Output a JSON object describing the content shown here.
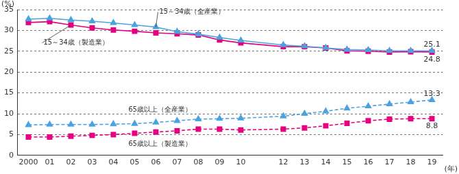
{
  "chart_data": {
    "type": "line",
    "y_label": "(%)",
    "x_label": "(年)",
    "categories": [
      "2000",
      "01",
      "02",
      "03",
      "04",
      "05",
      "06",
      "07",
      "08",
      "09",
      "10",
      null,
      "12",
      "13",
      "14",
      "15",
      "16",
      "17",
      "18",
      "19"
    ],
    "series": [
      {
        "name": "15～34歳（全産業）",
        "color": "#4aa3df",
        "marker": "triangle",
        "line_style": "solid",
        "values": [
          32.7,
          32.9,
          32.5,
          32.2,
          31.8,
          31.3,
          30.8,
          29.7,
          29.1,
          28.3,
          27.6,
          null,
          26.5,
          26.2,
          25.8,
          25.4,
          25.3,
          25.1,
          25.1,
          25.1
        ]
      },
      {
        "name": "15～34歳（製造業）",
        "color": "#e4007f",
        "marker": "square",
        "line_style": "solid",
        "values": [
          31.9,
          32.1,
          31.3,
          30.6,
          30.1,
          29.8,
          29.4,
          29.2,
          28.9,
          27.7,
          27.0,
          null,
          26.1,
          26.1,
          25.8,
          25.1,
          25.0,
          24.8,
          24.9,
          24.8
        ]
      },
      {
        "name": "65歳以上（全産業）",
        "color": "#4aa3df",
        "marker": "triangle",
        "line_style": "dashed",
        "values": [
          7.3,
          7.4,
          7.4,
          7.4,
          7.5,
          7.6,
          7.9,
          8.3,
          8.7,
          8.8,
          8.9,
          null,
          9.4,
          10.0,
          10.6,
          11.3,
          11.8,
          12.3,
          12.8,
          13.3
        ]
      },
      {
        "name": "65歳以上（製造業）",
        "color": "#e4007f",
        "marker": "square",
        "line_style": "dashed",
        "values": [
          4.4,
          4.4,
          4.6,
          4.8,
          5.0,
          5.3,
          5.6,
          5.9,
          6.3,
          6.3,
          6.1,
          null,
          6.3,
          6.6,
          7.1,
          7.7,
          8.3,
          8.7,
          8.8,
          8.8
        ]
      }
    ],
    "annotations": [
      {
        "text": "25.1",
        "x": "19",
        "y": 25.1
      },
      {
        "text": "24.8",
        "x": "19",
        "y": 24.8
      },
      {
        "text": "13.3",
        "x": "19",
        "y": 13.3
      },
      {
        "text": "8.8",
        "x": "19",
        "y": 8.8
      }
    ],
    "ylim": [
      0,
      35
    ],
    "yticks": [
      0,
      5,
      10,
      15,
      20,
      25,
      30,
      35
    ],
    "grid": true,
    "legend": false
  }
}
